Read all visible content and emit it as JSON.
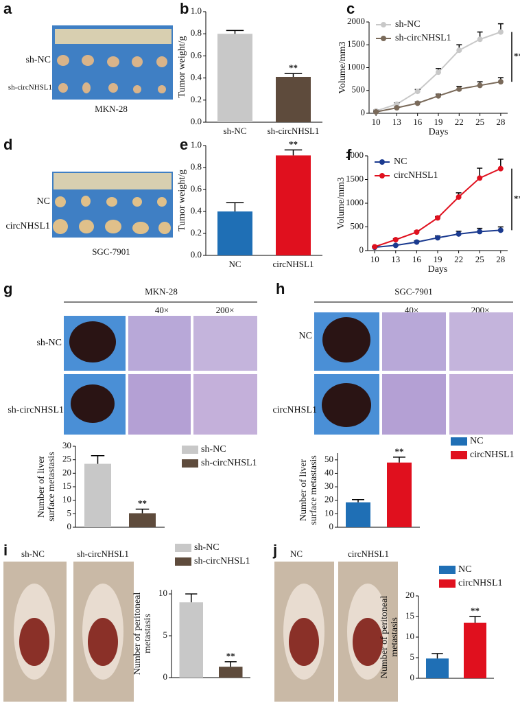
{
  "photos": [
    {
      "panel": "a",
      "row_labels": [
        "sh-NC",
        "sh-circNHSL1"
      ],
      "caption": "MKN-28"
    },
    {
      "panel": "d",
      "row_labels": [
        "NC",
        "circNHSL1"
      ],
      "caption": "SGC-7901"
    },
    {
      "panel": "g",
      "header": "MKN-28",
      "columns": [
        "40×",
        "200×"
      ],
      "row_labels": [
        "sh-NC",
        "sh-circNHSL1"
      ]
    },
    {
      "panel": "h",
      "header": "SGC-7901",
      "columns": [
        "40×",
        "200×"
      ],
      "row_labels": [
        "NC",
        "circNHSL1"
      ]
    },
    {
      "panel": "i",
      "column_labels": [
        "sh-NC",
        "sh-circNHSL1"
      ]
    },
    {
      "panel": "j",
      "column_labels": [
        "NC",
        "circNHSL1"
      ]
    }
  ],
  "chart_data": [
    {
      "type": "bar",
      "panel": "b",
      "ylabel": "Tumor weight/g",
      "categories": [
        "sh-NC",
        "sh-circNHSL1"
      ],
      "values": [
        0.8,
        0.41
      ],
      "errors": [
        0.03,
        0.03
      ],
      "colors": [
        "#c8c8c8",
        "#5e4b3c"
      ],
      "ylim": [
        0,
        1.0
      ],
      "yticks": [
        {
          "value": 0,
          "label": "0.0"
        },
        0.2,
        0.4,
        0.6,
        0.8,
        {
          "value": 1,
          "label": "1.0"
        }
      ],
      "annotation": "**"
    },
    {
      "type": "line",
      "panel": "c",
      "ylabel": "Volume/mm3",
      "xlabel": "Days",
      "x": [
        10,
        13,
        16,
        19,
        22,
        25,
        28
      ],
      "xlim": [
        9,
        29
      ],
      "xticks": [
        10,
        13,
        16,
        19,
        22,
        25,
        28
      ],
      "ylim": [
        0,
        2000
      ],
      "yticks": [
        0,
        500,
        1000,
        1500,
        2000
      ],
      "annotation": "**",
      "series": [
        {
          "name": "sh-NC",
          "color": "#c8c8c8",
          "values": [
            50,
            200,
            480,
            900,
            1380,
            1620,
            1780
          ],
          "errors": [
            20,
            30,
            40,
            80,
            120,
            160,
            180
          ]
        },
        {
          "name": "sh-circNHSL1",
          "color": "#7a6a5a",
          "values": [
            30,
            120,
            220,
            380,
            530,
            610,
            690
          ],
          "errors": [
            10,
            20,
            30,
            40,
            60,
            80,
            90
          ]
        }
      ]
    },
    {
      "type": "bar",
      "panel": "e",
      "ylabel": "Tumor weight/g",
      "categories": [
        "NC",
        "circNHSL1"
      ],
      "values": [
        0.4,
        0.91
      ],
      "errors": [
        0.08,
        0.05
      ],
      "colors": [
        "#1f6fb5",
        "#e0101e"
      ],
      "ylim": [
        0,
        1.0
      ],
      "yticks": [
        {
          "value": 0,
          "label": "0.0"
        },
        0.2,
        0.4,
        0.6,
        0.8,
        {
          "value": 1,
          "label": "1.0"
        }
      ],
      "annotation": "**"
    },
    {
      "type": "line",
      "panel": "f",
      "ylabel": "Volume/mm3",
      "xlabel": "Days",
      "x": [
        10,
        13,
        16,
        19,
        22,
        25,
        28
      ],
      "xlim": [
        9,
        29
      ],
      "xticks": [
        10,
        13,
        16,
        19,
        22,
        25,
        28
      ],
      "ylim": [
        0,
        2000
      ],
      "yticks": [
        0,
        500,
        1000,
        1500,
        2000
      ],
      "annotation": "**",
      "series": [
        {
          "name": "NC",
          "color": "#1a3a8f",
          "values": [
            70,
            110,
            180,
            270,
            350,
            400,
            430
          ],
          "errors": [
            10,
            15,
            25,
            40,
            60,
            70,
            70
          ]
        },
        {
          "name": "circNHSL1",
          "color": "#e0101e",
          "values": [
            80,
            230,
            390,
            690,
            1130,
            1530,
            1730
          ],
          "errors": [
            10,
            20,
            25,
            30,
            90,
            210,
            200
          ]
        }
      ]
    },
    {
      "type": "bar",
      "ylabel": [
        "Number of  liver",
        "surface metastasis"
      ],
      "ylim": [
        0,
        30
      ],
      "yticks": [
        0,
        5,
        10,
        15,
        20,
        25,
        30
      ],
      "annotation": "**",
      "series": [
        {
          "name": "sh-NC",
          "color": "#c8c8c8",
          "values": [
            23.5
          ],
          "errors": [
            3
          ]
        },
        {
          "name": "sh-circNHSL1",
          "color": "#5e4b3c",
          "values": [
            5.2
          ],
          "errors": [
            1.5
          ]
        }
      ]
    },
    {
      "type": "bar",
      "ylabel": [
        "Number of  liver",
        "surface metastasis"
      ],
      "ylim": [
        0,
        55
      ],
      "yticks": [
        0,
        10,
        20,
        30,
        40,
        50
      ],
      "annotation": "**",
      "series": [
        {
          "name": "NC",
          "color": "#1f6fb5",
          "values": [
            18.5
          ],
          "errors": [
            2
          ]
        },
        {
          "name": "circNHSL1",
          "color": "#e0101e",
          "values": [
            48
          ],
          "errors": [
            4
          ]
        }
      ]
    },
    {
      "type": "bar",
      "ylabel": [
        "Number of peritoneal",
        "metastasis"
      ],
      "ylim": [
        0,
        10.5
      ],
      "yticks": [
        0,
        5,
        10
      ],
      "annotation": "**",
      "series": [
        {
          "name": "sh-NC",
          "color": "#c8c8c8",
          "values": [
            9
          ],
          "errors": [
            1
          ]
        },
        {
          "name": "sh-circNHSL1",
          "color": "#5e4b3c",
          "values": [
            1.3
          ],
          "errors": [
            0.6
          ]
        }
      ]
    },
    {
      "type": "bar",
      "ylabel": [
        "Number of peritoneal",
        "metastasis"
      ],
      "ylim": [
        0,
        20
      ],
      "yticks": [
        0,
        5,
        10,
        15,
        20
      ],
      "annotation": "**",
      "series": [
        {
          "name": "NC",
          "color": "#1f6fb5",
          "values": [
            4.8
          ],
          "errors": [
            1.2
          ]
        },
        {
          "name": "circNHSL1",
          "color": "#e0101e",
          "values": [
            13.5
          ],
          "errors": [
            1.5
          ]
        }
      ]
    }
  ]
}
